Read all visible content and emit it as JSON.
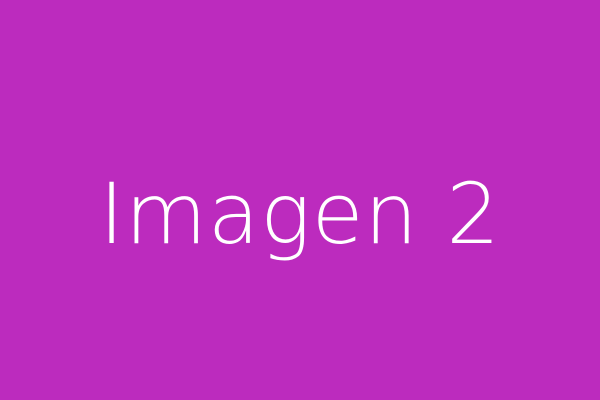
{
  "image": {
    "label": "Imagen 2",
    "background_color": "#BC2BBE",
    "text_color": "#FFFFFF"
  }
}
